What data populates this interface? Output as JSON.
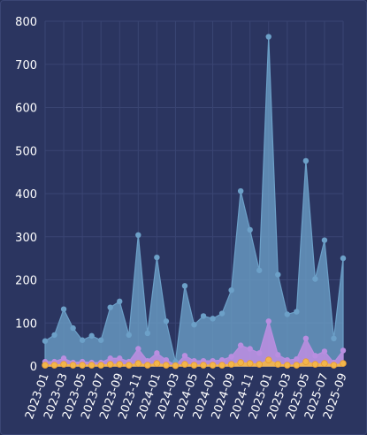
{
  "chart_data": {
    "type": "area",
    "x": [
      "2023-01",
      "2023-02",
      "2023-03",
      "2023-04",
      "2023-05",
      "2023-06",
      "2023-07",
      "2023-08",
      "2023-09",
      "2023-10",
      "2023-11",
      "2023-12",
      "2024-01",
      "2024-02",
      "2024-03",
      "2024-04",
      "2024-05",
      "2024-06",
      "2024-07",
      "2024-08",
      "2024-09",
      "2024-10",
      "2024-11",
      "2024-12",
      "2025-01",
      "2025-02",
      "2025-03",
      "2025-04",
      "2025-05",
      "2025-06",
      "2025-07",
      "2025-08",
      "2025-09"
    ],
    "x_tick_labels": [
      "2023-01",
      "2023-03",
      "2023-05",
      "2023-07",
      "2023-09",
      "2023-11",
      "2024-01",
      "2024-03",
      "2024-05",
      "2024-07",
      "2024-09",
      "2024-11",
      "2025-01",
      "2025-03",
      "2025-05",
      "2025-07",
      "2025-09"
    ],
    "y_ticks": [
      0,
      100,
      200,
      300,
      400,
      500,
      600,
      700,
      800
    ],
    "ylim": [
      0,
      800
    ],
    "grid": true,
    "series": [
      {
        "color": "#6ca0c8",
        "values": [
          58,
          72,
          132,
          88,
          60,
          70,
          60,
          136,
          150,
          72,
          304,
          76,
          252,
          104,
          10,
          186,
          96,
          116,
          110,
          122,
          176,
          406,
          316,
          222,
          764,
          212,
          120,
          126,
          476,
          202,
          292,
          64,
          250
        ]
      },
      {
        "color": "#b98ee0",
        "values": [
          10,
          10,
          18,
          8,
          10,
          8,
          8,
          18,
          18,
          10,
          40,
          12,
          30,
          14,
          2,
          24,
          12,
          12,
          12,
          14,
          22,
          48,
          40,
          30,
          104,
          26,
          14,
          16,
          64,
          24,
          34,
          8,
          36
        ]
      },
      {
        "color": "#f2b64b",
        "values": [
          2,
          2,
          4,
          2,
          2,
          2,
          2,
          4,
          4,
          2,
          6,
          2,
          6,
          2,
          1,
          4,
          2,
          2,
          2,
          2,
          4,
          8,
          6,
          4,
          14,
          4,
          2,
          2,
          10,
          4,
          6,
          2,
          6
        ]
      }
    ]
  }
}
